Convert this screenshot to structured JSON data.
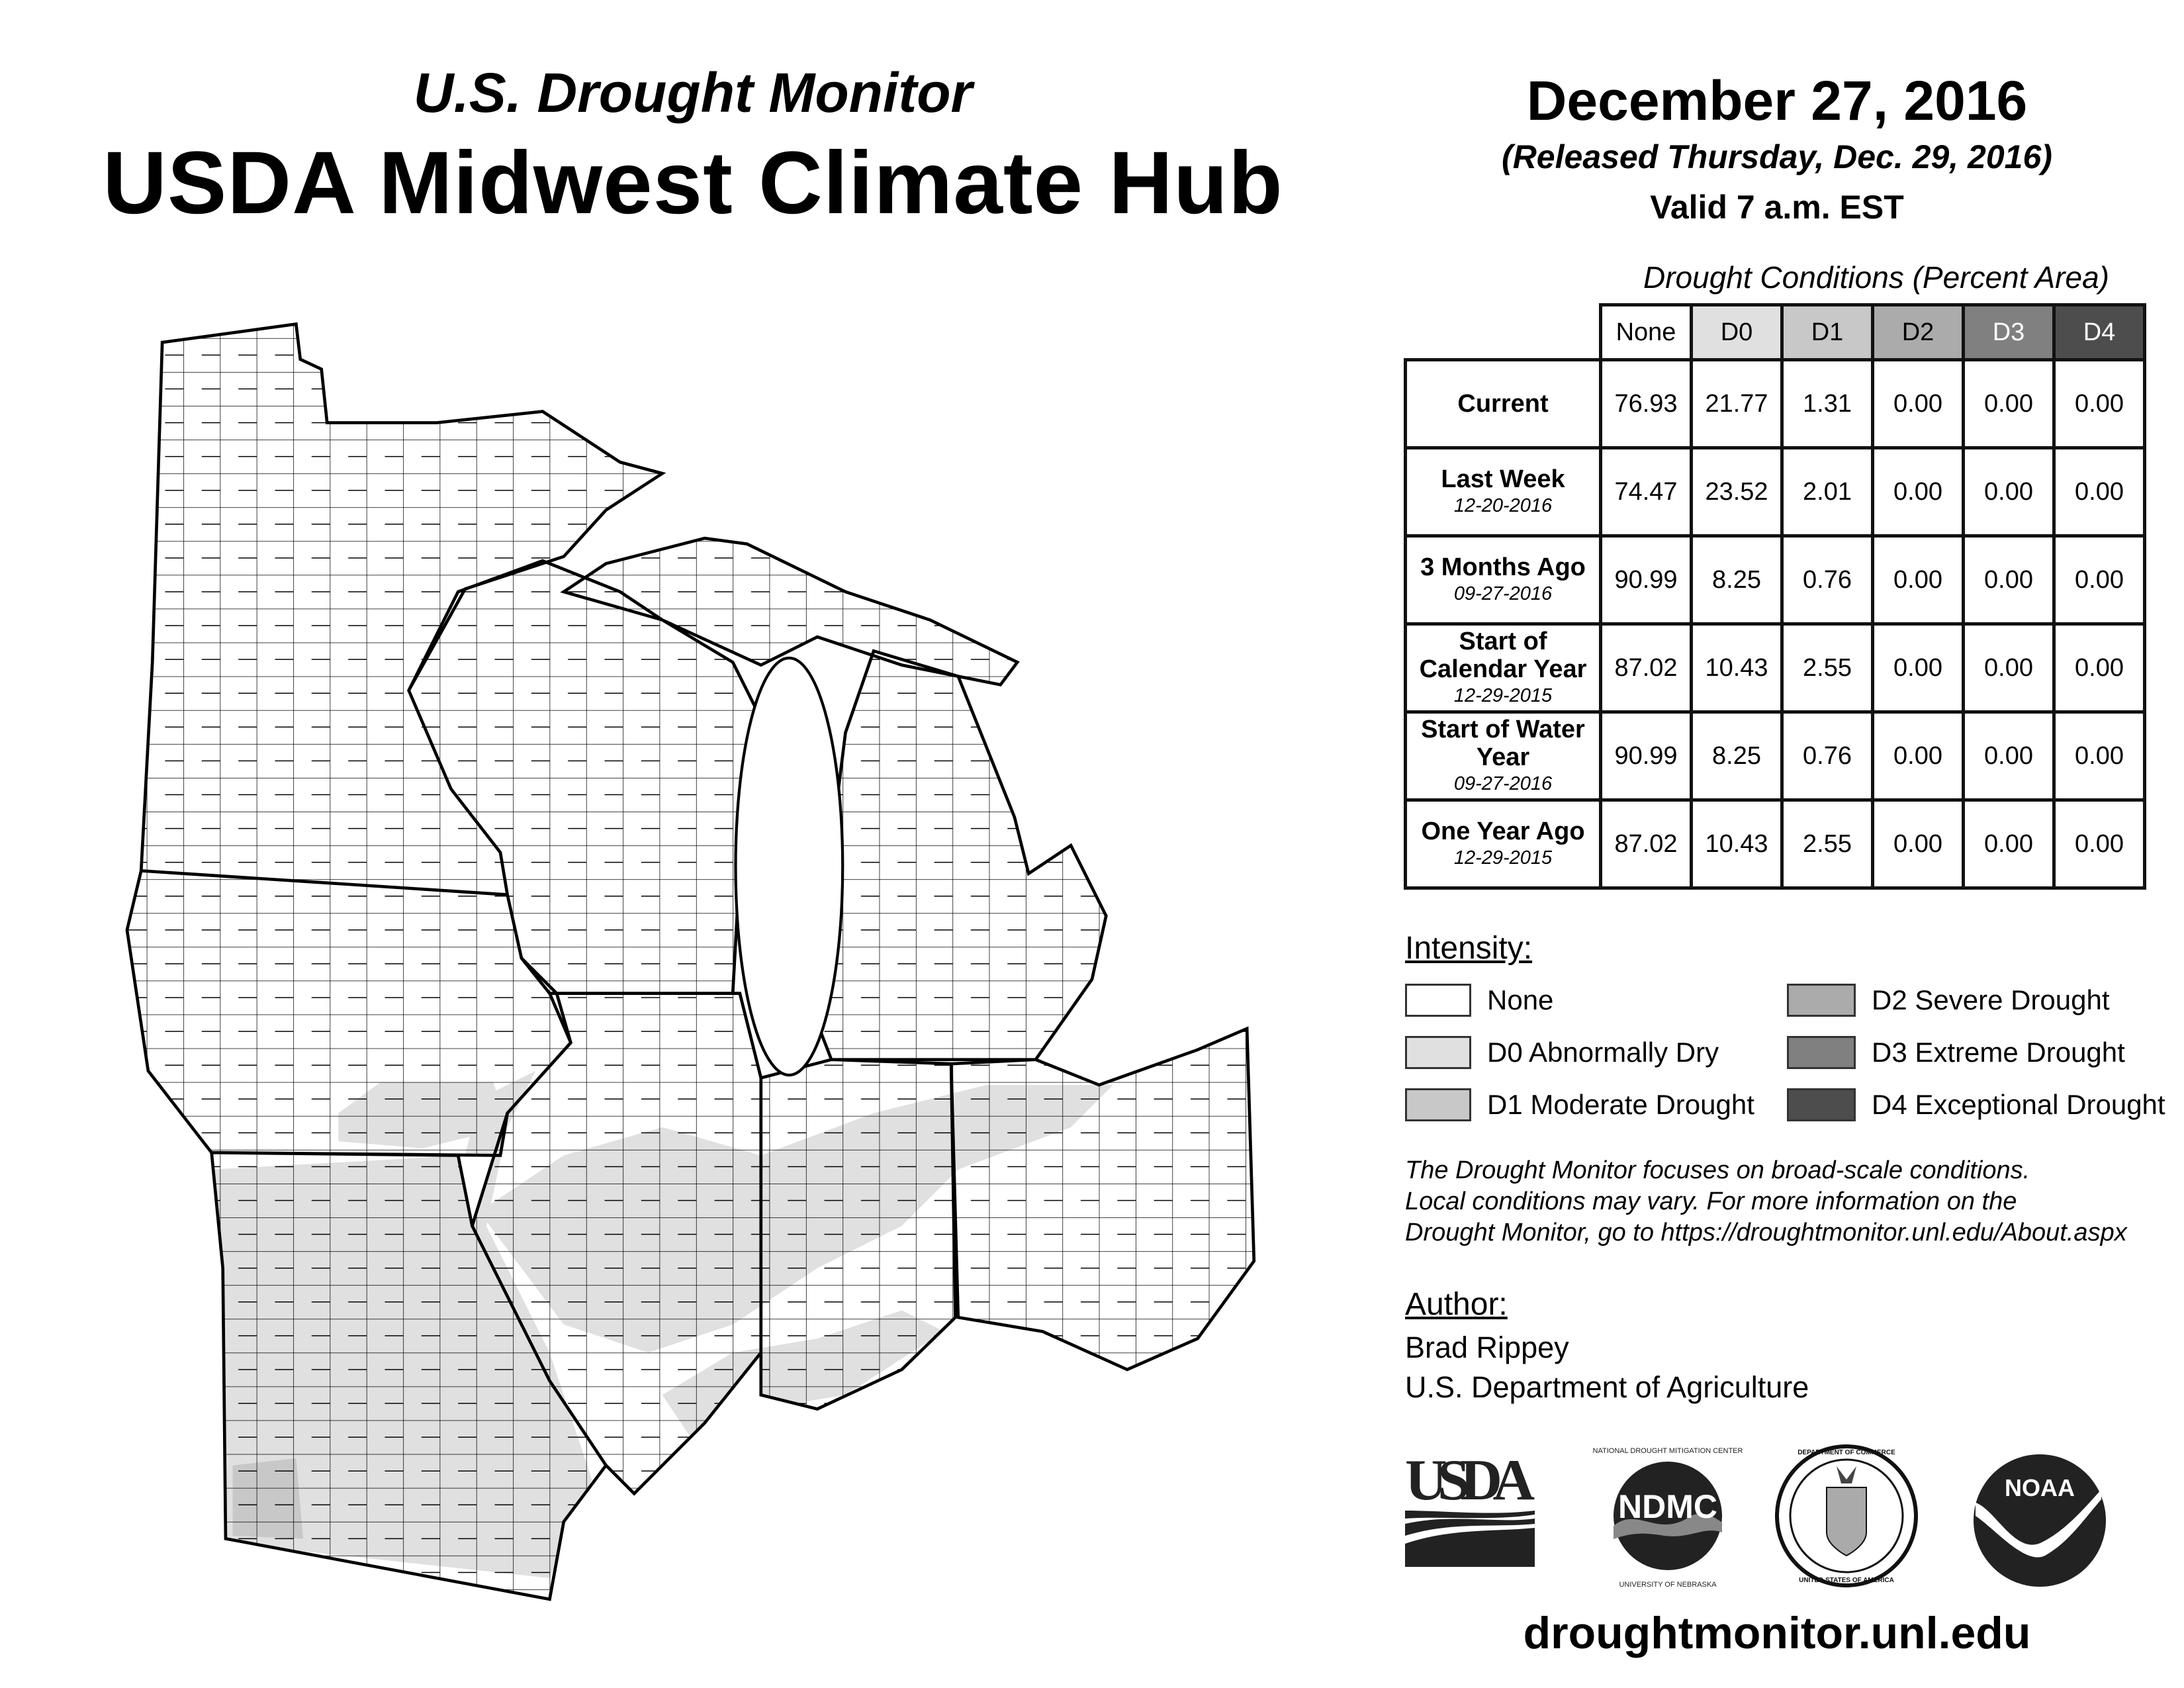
{
  "header": {
    "subtitle": "U.S. Drought Monitor",
    "title": "USDA Midwest Climate Hub",
    "date": "December 27, 2016",
    "released": "(Released Thursday, Dec. 29, 2016)",
    "valid": "Valid 7 a.m. EST"
  },
  "table": {
    "caption": "Drought Conditions (Percent Area)",
    "columns": [
      "None",
      "D0",
      "D1",
      "D2",
      "D3",
      "D4"
    ],
    "rows": [
      {
        "label": "Current",
        "date": "",
        "values": [
          "76.93",
          "21.77",
          "1.31",
          "0.00",
          "0.00",
          "0.00"
        ]
      },
      {
        "label": "Last Week",
        "date": "12-20-2016",
        "values": [
          "74.47",
          "23.52",
          "2.01",
          "0.00",
          "0.00",
          "0.00"
        ]
      },
      {
        "label": "3 Months Ago",
        "date": "09-27-2016",
        "values": [
          "90.99",
          "8.25",
          "0.76",
          "0.00",
          "0.00",
          "0.00"
        ]
      },
      {
        "label": "Start of Calendar Year",
        "date": "12-29-2015",
        "values": [
          "87.02",
          "10.43",
          "2.55",
          "0.00",
          "0.00",
          "0.00"
        ]
      },
      {
        "label": "Start of Water Year",
        "date": "09-27-2016",
        "values": [
          "90.99",
          "8.25",
          "0.76",
          "0.00",
          "0.00",
          "0.00"
        ]
      },
      {
        "label": "One Year Ago",
        "date": "12-29-2015",
        "values": [
          "87.02",
          "10.43",
          "2.55",
          "0.00",
          "0.00",
          "0.00"
        ]
      }
    ]
  },
  "legend": {
    "title": "Intensity:",
    "items": [
      {
        "label": "None",
        "color": "#ffffff"
      },
      {
        "label": "D0 Abnormally Dry",
        "color": "#e0e0e0"
      },
      {
        "label": "D1 Moderate Drought",
        "color": "#c8c8c8"
      },
      {
        "label": "D2 Severe Drought",
        "color": "#ababab"
      },
      {
        "label": "D3 Extreme Drought",
        "color": "#808080"
      },
      {
        "label": "D4 Exceptional Drought",
        "color": "#4d4d4d"
      }
    ]
  },
  "note": [
    "The Drought Monitor focuses on broad-scale conditions.",
    "Local conditions may vary. For more information on the",
    "Drought Monitor, go to https://droughtmonitor.unl.edu/About.aspx"
  ],
  "author": {
    "title": "Author:",
    "name": "Brad Rippey",
    "org": "U.S. Department of Agriculture"
  },
  "logos": {
    "usda": "USDA",
    "ndmc": "NDMC",
    "ndmc_ring_top": "NATIONAL DROUGHT MITIGATION CENTER",
    "ndmc_ring_bottom": "UNIVERSITY OF NEBRASKA",
    "doc_ring_top": "DEPARTMENT OF COMMERCE",
    "doc_ring_bottom": "UNITED STATES OF AMERICA",
    "noaa": "NOAA"
  },
  "footer": {
    "url": "droughtmonitor.unl.edu"
  }
}
